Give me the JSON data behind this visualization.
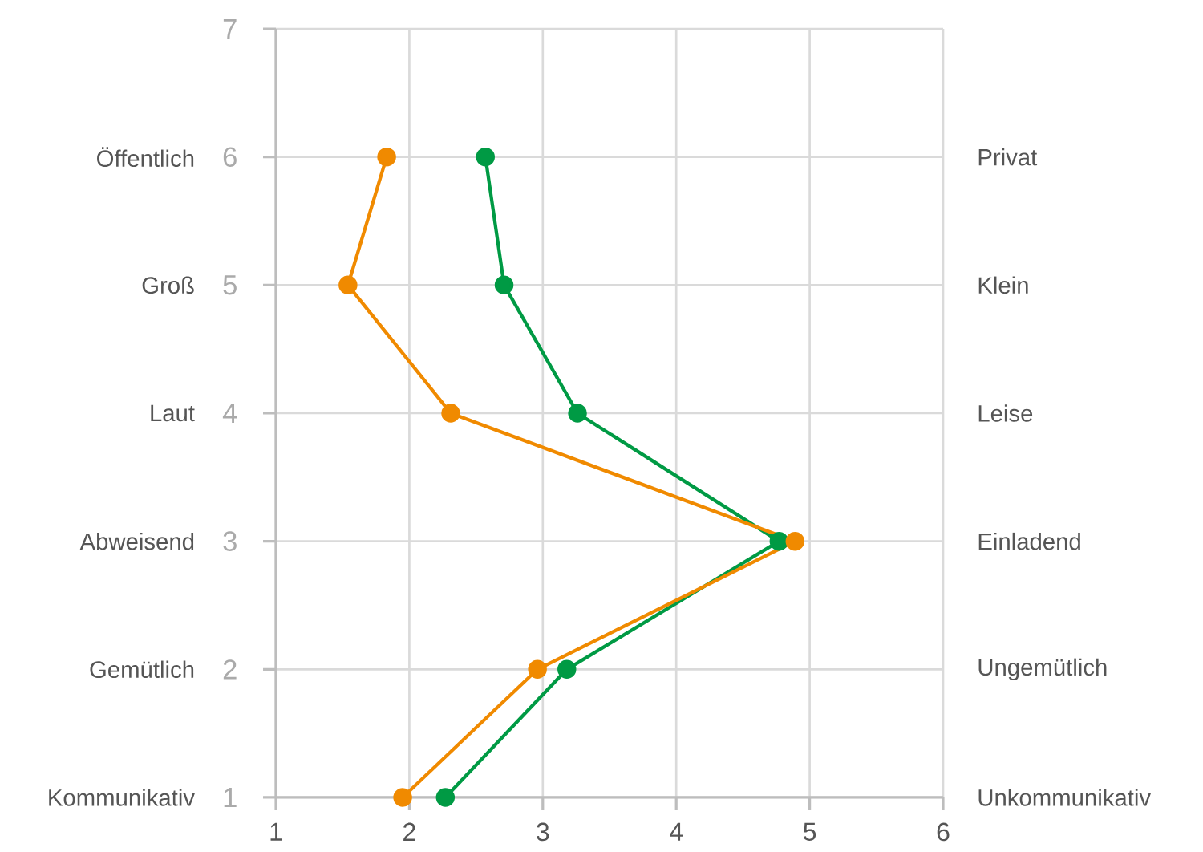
{
  "chart_data": {
    "type": "line",
    "orientation": "horizontal",
    "xlim": [
      1,
      6
    ],
    "xticks": [
      1,
      2,
      3,
      4,
      5,
      6
    ],
    "categories": [
      null,
      "Öffentlich",
      "Groß",
      "Laut",
      "Abweisend",
      "Gemütlich",
      "Kommunikativ"
    ],
    "y2_categories": [
      null,
      "Privat",
      "Klein",
      "Leise",
      "Einladend",
      "Ungemütlich",
      "Unkommunikativ"
    ],
    "annotations": [
      "7",
      "6",
      "5",
      "4",
      "3",
      "2",
      "1"
    ],
    "grid": true,
    "marker": "circle",
    "line_style": "solid",
    "series": [
      {
        "color": "#009a44",
        "values": [
          null,
          2.57,
          2.71,
          3.26,
          4.77,
          3.18,
          2.27
        ]
      },
      {
        "color": "#f08a00",
        "values": [
          null,
          1.83,
          1.54,
          2.31,
          4.89,
          2.96,
          1.95
        ]
      }
    ]
  }
}
